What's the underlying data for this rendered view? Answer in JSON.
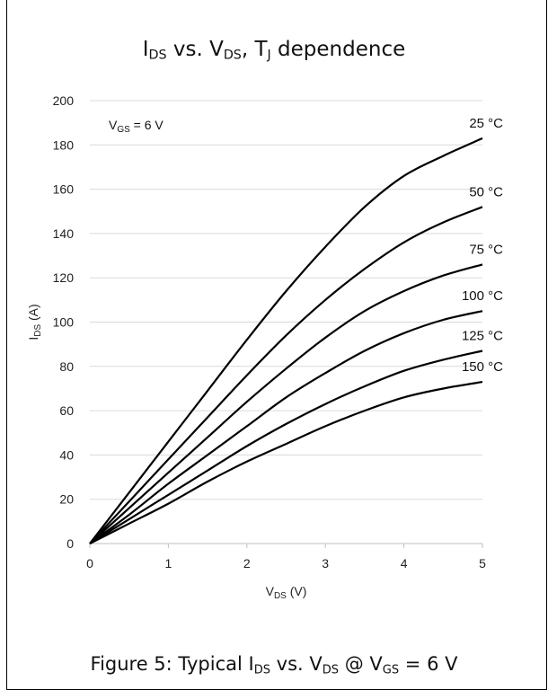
{
  "title": {
    "I": "I",
    "DS": "DS",
    "vs": " vs. V",
    "DS2": "DS",
    "sep": ", T",
    "J": "J",
    "rest": " dependence"
  },
  "caption": {
    "pre": "Figure 5: Typical I",
    "DS": "DS",
    "mid": " vs. V",
    "DS2": "DS",
    "at": " @ V",
    "GS": "GS",
    "post": " = 6 V"
  },
  "chart_data": {
    "type": "line",
    "xlabel": "V_DS (V)",
    "ylabel": "I_DS (A)",
    "xlim": [
      0,
      5
    ],
    "ylim": [
      0,
      200
    ],
    "xticks": [
      0,
      1,
      2,
      3,
      4,
      5
    ],
    "yticks": [
      0,
      20,
      40,
      60,
      80,
      100,
      120,
      140,
      160,
      180,
      200
    ],
    "grid": "horizontal",
    "annotation": "V_GS = 6 V",
    "x": [
      0,
      0.5,
      1,
      1.5,
      2,
      2.5,
      3,
      3.5,
      4,
      4.5,
      5
    ],
    "series": [
      {
        "name": "25 °C",
        "values": [
          0,
          23,
          46,
          69,
          92,
          114,
          134,
          152,
          166,
          175,
          183
        ]
      },
      {
        "name": "50 °C",
        "values": [
          0,
          19,
          38,
          57,
          76,
          94,
          110,
          124,
          136,
          145,
          152
        ]
      },
      {
        "name": "75 °C",
        "values": [
          0,
          16,
          32,
          48,
          64,
          79,
          93,
          105,
          114,
          121,
          126
        ]
      },
      {
        "name": "100 °C",
        "values": [
          0,
          13,
          27,
          40,
          53,
          66,
          77,
          87,
          95,
          101,
          105
        ]
      },
      {
        "name": "125 °C",
        "values": [
          0,
          11,
          22,
          33,
          44,
          54,
          63,
          71,
          78,
          83,
          87
        ]
      },
      {
        "name": "150 °C",
        "values": [
          0,
          9,
          18,
          28,
          37,
          45,
          53,
          60,
          66,
          70,
          73
        ]
      }
    ]
  },
  "axis_text": {
    "x_main": "V",
    "x_sub": "DS",
    "x_unit": " (V)",
    "y_main": "I",
    "y_sub": "DS",
    "y_unit": " (A)",
    "annot_main": "V",
    "annot_sub": "GS",
    "annot_rest": " = 6 V"
  }
}
